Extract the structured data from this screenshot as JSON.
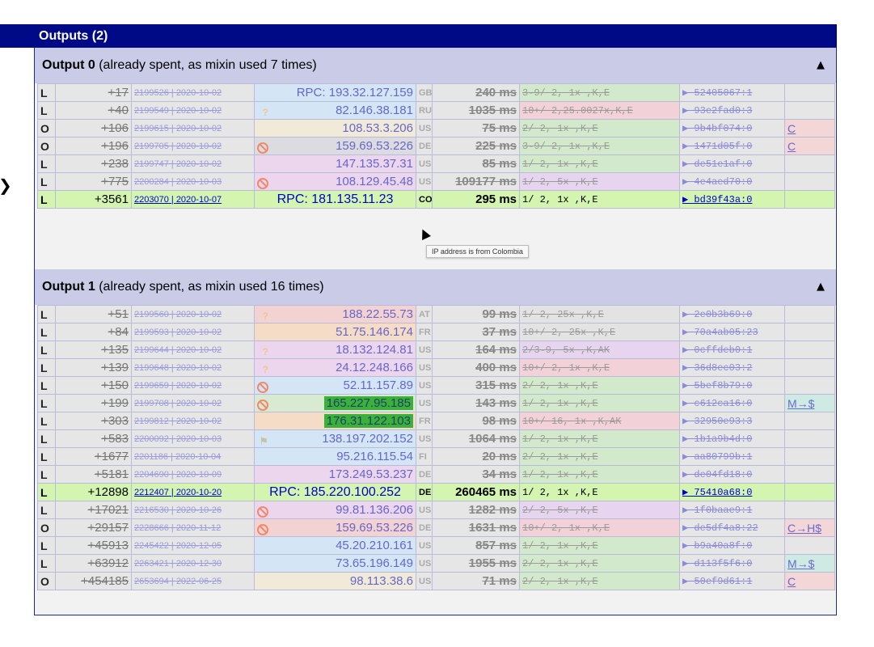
{
  "outputs_panel": {
    "title": "Outputs (2)"
  },
  "sections": [
    {
      "label": "Output 0",
      "note": "(already spent, as mixin used 7 times)",
      "toggle": "▲",
      "rows": [
        {
          "type": "L",
          "offset": "+17",
          "block": "2199526",
          "date": "2020-10-02",
          "ip": "RPC: 193.32.127.159",
          "cc": "GB",
          "ms": "240 ms",
          "ver": "3-9/  2,   1x  ,K,E",
          "hash": "▶ 52405067:1",
          "extra": "",
          "icon": "",
          "ipbg": "bg-blue",
          "verbg": "v-green"
        },
        {
          "type": "L",
          "offset": "+40",
          "block": "2199549",
          "date": "2020-10-02",
          "ip": "82.146.38.181",
          "cc": "RU",
          "ms": "1035 ms",
          "ver": "10+/  2,25.0027x,K,E",
          "hash": "▶ 93e2fad0:3",
          "extra": "",
          "icon": "q",
          "ipbg": "bg-blue",
          "verbg": "v-pink"
        },
        {
          "type": "O",
          "offset": "+106",
          "block": "2199615",
          "date": "2020-10-02",
          "ip": "108.53.3.206",
          "cc": "US",
          "ms": "75 ms",
          "ver": "2/  2,   1x  ,K,E",
          "hash": "▶ 9b4bf074:0",
          "extra": "C",
          "icon": "",
          "ipbg": "bg-cream",
          "verbg": "v-green",
          "extrabg": "e-red"
        },
        {
          "type": "O",
          "offset": "+196",
          "block": "2199705",
          "date": "2020-10-02",
          "ip": "159.69.53.226",
          "cc": "DE",
          "ms": "225 ms",
          "ver": "3-9/  2,   1x  ,K,E",
          "hash": "▶ 1471d05f:0",
          "extra": "C",
          "icon": "banned",
          "ipbg": "bg-grey",
          "verbg": "v-green",
          "extrabg": "e-red"
        },
        {
          "type": "L",
          "offset": "+238",
          "block": "2199747",
          "date": "2020-10-02",
          "ip": "147.135.37.31",
          "cc": "US",
          "ms": "85 ms",
          "ver": "1/  2,   1x  ,K,E",
          "hash": "▶ de51e1af:0",
          "extra": "",
          "icon": "",
          "ipbg": "bg-pink",
          "verbg": "v-green"
        },
        {
          "type": "L",
          "offset": "+775",
          "block": "2200284",
          "date": "2020-10-03",
          "ip": "108.129.45.48",
          "cc": "US",
          "ms": "109177 ms",
          "ver": "1/  2,   5x  ,K,E",
          "hash": "▶ 4e4aed70:0",
          "extra": "",
          "icon": "banned",
          "ipbg": "bg-pink",
          "verbg": "v-purple"
        },
        {
          "type": "L",
          "offset": "+3561",
          "block": "2203070",
          "date": "2020-10-07",
          "ip": "RPC: 181.135.11.23",
          "cc": "CO",
          "ms": "295 ms",
          "ver": "1/  2,   1x  ,K,E",
          "hash": "▶ bd39f43a:0",
          "extra": "",
          "icon": "",
          "ipbg": "",
          "verbg": "",
          "hl": true
        }
      ]
    },
    {
      "label": "Output 1",
      "note": "(already spent, as mixin used 16 times)",
      "toggle": "▲",
      "rows": [
        {
          "type": "L",
          "offset": "+51",
          "block": "2199560",
          "date": "2020-10-02",
          "ip": "188.22.55.73",
          "cc": "AT",
          "ms": "99 ms",
          "ver": "1/  2,  25x  ,K,E",
          "hash": "▶ 2e0b3b69:0",
          "extra": "",
          "icon": "q",
          "ipbg": "bg-red",
          "verbg": "v-grey"
        },
        {
          "type": "L",
          "offset": "+84",
          "block": "2199593",
          "date": "2020-10-02",
          "ip": "51.75.146.174",
          "cc": "FR",
          "ms": "37 ms",
          "ver": "10+/  2,  25x  ,K,E",
          "hash": "▶ 70a4ab05:23",
          "extra": "",
          "icon": "",
          "ipbg": "bg-peach",
          "verbg": "v-grey"
        },
        {
          "type": "L",
          "offset": "+135",
          "block": "2199644",
          "date": "2020-10-02",
          "ip": "18.132.124.81",
          "cc": "US",
          "ms": "164 ms",
          "ver": "2/3-9,   5x  ,K,AK",
          "hash": "▶ 0cffdeb0:1",
          "extra": "",
          "icon": "q",
          "ipbg": "bg-pink",
          "verbg": "v-purple"
        },
        {
          "type": "L",
          "offset": "+139",
          "block": "2199648",
          "date": "2020-10-02",
          "ip": "24.12.248.166",
          "cc": "US",
          "ms": "400 ms",
          "ver": "10+/  2,   1x  ,K,E",
          "hash": "▶ 36d8ec03:2",
          "extra": "",
          "icon": "q",
          "ipbg": "bg-pink",
          "verbg": "v-pink"
        },
        {
          "type": "L",
          "offset": "+150",
          "block": "2199659",
          "date": "2020-10-02",
          "ip": "52.11.157.89",
          "cc": "US",
          "ms": "315 ms",
          "ver": "2/  2,   1x  ,K,E",
          "hash": "▶ 5bef8b79:0",
          "extra": "",
          "icon": "banned",
          "ipbg": "bg-blue",
          "verbg": "v-green"
        },
        {
          "type": "L",
          "offset": "+199",
          "block": "2199708",
          "date": "2020-10-02",
          "ip": "165.227.95.185",
          "cc": "US",
          "ms": "143 ms",
          "ver": "1/  2,   1x  ,K,E",
          "hash": "▶ c612ca16:0",
          "extra": "M→$",
          "icon": "banned",
          "ipbg": "bg-green",
          "verbg": "v-green",
          "extrabg": "e-green",
          "iphl": true
        },
        {
          "type": "L",
          "offset": "+303",
          "block": "2199812",
          "date": "2020-10-02",
          "ip": "176.31.122.103",
          "cc": "FR",
          "ms": "98 ms",
          "ver": "10+/ 16,   1x  ,K,AK",
          "hash": "▶ 32950e93:3",
          "extra": "",
          "icon": "",
          "ipbg": "bg-peach",
          "verbg": "v-pink",
          "iphl": true
        },
        {
          "type": "L",
          "offset": "+583",
          "block": "2200092",
          "date": "2020-10-03",
          "ip": "138.197.202.152",
          "cc": "US",
          "ms": "1064 ms",
          "ver": "1/  2,   1x  ,K,E",
          "hash": "▶ 1b1a9b4d:0",
          "extra": "",
          "icon": "flag",
          "ipbg": "bg-blue",
          "verbg": "v-green"
        },
        {
          "type": "L",
          "offset": "+1677",
          "block": "2201186",
          "date": "2020-10-04",
          "ip": "95.216.115.54",
          "cc": "FI",
          "ms": "20 ms",
          "ver": "2/  2,   1x  ,K,E",
          "hash": "▶ aa80799b:1",
          "extra": "",
          "icon": "",
          "ipbg": "bg-blue",
          "verbg": "v-green"
        },
        {
          "type": "L",
          "offset": "+5181",
          "block": "2204690",
          "date": "2020-10-09",
          "ip": "173.249.53.237",
          "cc": "DE",
          "ms": "34 ms",
          "ver": "1/  2,   1x  ,K,E",
          "hash": "▶ de04fd18:0",
          "extra": "",
          "icon": "",
          "ipbg": "bg-pink",
          "verbg": "v-green"
        },
        {
          "type": "L",
          "offset": "+12898",
          "block": "2212407",
          "date": "2020-10-20",
          "ip": "RPC: 185.220.100.252",
          "cc": "DE",
          "ms": "260465 ms",
          "ver": "1/  2,   1x  ,K,E",
          "hash": "▶ 75410a68:0",
          "extra": "",
          "icon": "",
          "ipbg": "",
          "verbg": "",
          "hl": true
        },
        {
          "type": "L",
          "offset": "+17021",
          "block": "2216530",
          "date": "2020-10-26",
          "ip": "99.81.136.206",
          "cc": "US",
          "ms": "1282 ms",
          "ver": "2/  2,   5x  ,K,E",
          "hash": "▶ 1f0baae9:1",
          "extra": "",
          "icon": "banned",
          "ipbg": "bg-pink",
          "verbg": "v-purple"
        },
        {
          "type": "O",
          "offset": "+29157",
          "block": "2228666",
          "date": "2020-11-12",
          "ip": "159.69.53.226",
          "cc": "DE",
          "ms": "1631 ms",
          "ver": "10+/  2,   1x  ,K,E",
          "hash": "▶ de5df4a8:22",
          "extra": "C→H$",
          "icon": "banned",
          "ipbg": "bg-red",
          "verbg": "v-pink",
          "extrabg": "e-red"
        },
        {
          "type": "L",
          "offset": "+45913",
          "block": "2245422",
          "date": "2020-12-05",
          "ip": "45.20.210.161",
          "cc": "US",
          "ms": "857 ms",
          "ver": "1/  2,   1x  ,K,E",
          "hash": "▶ b9a40a8f:0",
          "extra": "",
          "icon": "",
          "ipbg": "bg-blue",
          "verbg": "v-green"
        },
        {
          "type": "L",
          "offset": "+63912",
          "block": "2263421",
          "date": "2020-12-30",
          "ip": "73.65.196.149",
          "cc": "US",
          "ms": "1955 ms",
          "ver": "2/  2,   1x  ,K,E",
          "hash": "▶ d113f5f6:0",
          "extra": "M→$",
          "icon": "",
          "ipbg": "bg-blue",
          "verbg": "v-green",
          "extrabg": "e-green"
        },
        {
          "type": "O",
          "offset": "+454185",
          "block": "2653694",
          "date": "2022-06-25",
          "ip": "98.113.38.6",
          "cc": "US",
          "ms": "71 ms",
          "ver": "2/  2,   1x  ,K,E",
          "hash": "▶ 50ef9d61:1",
          "extra": "C",
          "icon": "",
          "ipbg": "bg-cream",
          "verbg": "v-green",
          "extrabg": "e-red"
        }
      ]
    }
  ],
  "tooltip": "IP address is from Colombia",
  "left_marker": "❯"
}
